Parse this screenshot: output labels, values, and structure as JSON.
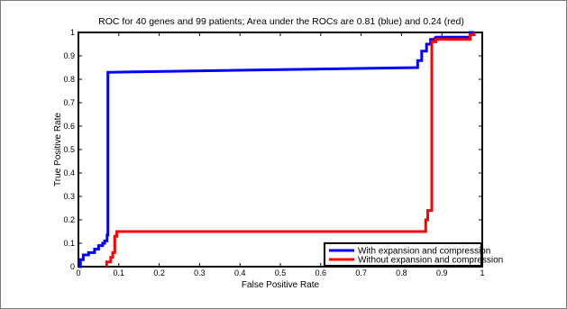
{
  "chart_data": {
    "type": "line",
    "title": "ROC for 40 genes and 99 patients; Area under the ROCs are  0.81 (blue) and 0.24 (red)",
    "xlabel": "False Positive Rate",
    "ylabel": "True Positive Rate",
    "xlim": [
      0,
      1
    ],
    "ylim": [
      0,
      1
    ],
    "xticks": [
      "0",
      "0.1",
      "0.2",
      "0.3",
      "0.4",
      "0.5",
      "0.6",
      "0.7",
      "0.8",
      "0.9",
      "1"
    ],
    "yticks": [
      "0",
      "0.1",
      "0.2",
      "0.3",
      "0.4",
      "0.5",
      "0.6",
      "0.7",
      "0.8",
      "0.9",
      "1"
    ],
    "grid": false,
    "legend_position": "bottom-right",
    "series": [
      {
        "name": "With expansion and compression",
        "color": "#0000ff",
        "points": [
          [
            0.0,
            0.0
          ],
          [
            0.005,
            0.0
          ],
          [
            0.005,
            0.03
          ],
          [
            0.012,
            0.03
          ],
          [
            0.012,
            0.05
          ],
          [
            0.025,
            0.05
          ],
          [
            0.025,
            0.06
          ],
          [
            0.04,
            0.06
          ],
          [
            0.04,
            0.075
          ],
          [
            0.05,
            0.075
          ],
          [
            0.05,
            0.09
          ],
          [
            0.06,
            0.09
          ],
          [
            0.06,
            0.1
          ],
          [
            0.065,
            0.1
          ],
          [
            0.065,
            0.11
          ],
          [
            0.071,
            0.11
          ],
          [
            0.071,
            0.135
          ],
          [
            0.073,
            0.135
          ],
          [
            0.073,
            0.83
          ],
          [
            0.84,
            0.85
          ],
          [
            0.84,
            0.88
          ],
          [
            0.85,
            0.88
          ],
          [
            0.85,
            0.92
          ],
          [
            0.862,
            0.92
          ],
          [
            0.862,
            0.95
          ],
          [
            0.872,
            0.95
          ],
          [
            0.872,
            0.97
          ],
          [
            0.88,
            0.97
          ],
          [
            0.885,
            0.98
          ],
          [
            0.97,
            0.98
          ],
          [
            0.97,
            1.0
          ],
          [
            0.98,
            1.0
          ]
        ]
      },
      {
        "name": "Without expansion and compression",
        "color": "#ff0000",
        "points": [
          [
            0.07,
            0.0
          ],
          [
            0.07,
            0.02
          ],
          [
            0.08,
            0.02
          ],
          [
            0.08,
            0.04
          ],
          [
            0.085,
            0.04
          ],
          [
            0.085,
            0.06
          ],
          [
            0.09,
            0.06
          ],
          [
            0.09,
            0.13
          ],
          [
            0.095,
            0.13
          ],
          [
            0.095,
            0.15
          ],
          [
            0.86,
            0.15
          ],
          [
            0.86,
            0.2
          ],
          [
            0.865,
            0.2
          ],
          [
            0.865,
            0.24
          ],
          [
            0.875,
            0.24
          ],
          [
            0.875,
            0.96
          ],
          [
            0.885,
            0.96
          ],
          [
            0.885,
            0.97
          ],
          [
            0.97,
            0.97
          ],
          [
            0.97,
            0.99
          ],
          [
            0.98,
            0.99
          ],
          [
            0.98,
            1.0
          ]
        ]
      }
    ]
  }
}
